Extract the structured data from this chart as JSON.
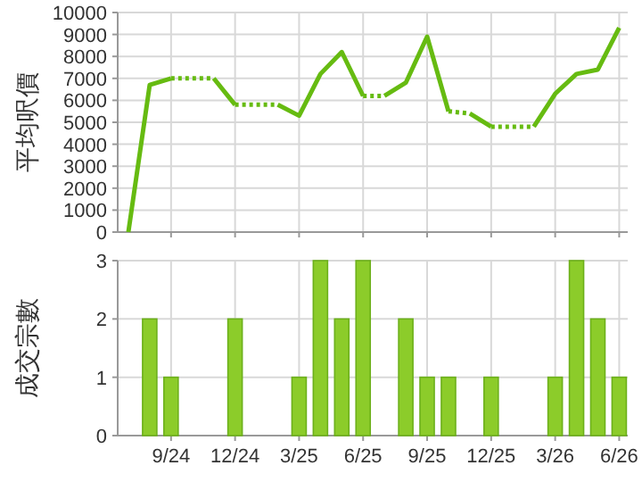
{
  "chart_data": [
    {
      "type": "line",
      "ylabel": "平均呎價",
      "xlim": [
        "2024-06-16",
        "2026-06-13"
      ],
      "ylim": [
        0,
        10000
      ],
      "yticks": [
        0,
        1000,
        2000,
        3000,
        4000,
        5000,
        6000,
        7000,
        8000,
        9000,
        10000
      ],
      "xticks": [
        {
          "value": "2024-09",
          "label": null
        },
        {
          "value": "2024-12",
          "label": null
        },
        {
          "value": "2025-03",
          "label": null
        },
        {
          "value": "2025-06",
          "label": null
        },
        {
          "value": "2025-09",
          "label": null
        },
        {
          "value": "2025-12",
          "label": null
        },
        {
          "value": "2026-03",
          "label": null
        },
        {
          "value": "2026-06",
          "label": null
        }
      ],
      "tick_labels": "y",
      "grid": true,
      "marker": "none",
      "series": [
        {
          "color": "#66bb11",
          "line_style": "solid",
          "x": [
            "2024-07",
            "2024-08",
            "2024-09"
          ],
          "values": [
            0,
            6700,
            7000
          ]
        },
        {
          "color": "#66bb11",
          "line_style": "dotted",
          "x": [
            "2024-09",
            "2024-10",
            "2024-11"
          ],
          "values": [
            7000,
            7000,
            7000
          ]
        },
        {
          "color": "#66bb11",
          "line_style": "solid",
          "x": [
            "2024-11",
            "2024-12"
          ],
          "values": [
            7000,
            5800
          ]
        },
        {
          "color": "#66bb11",
          "line_style": "dotted",
          "x": [
            "2024-12",
            "2025-01",
            "2025-02"
          ],
          "values": [
            5800,
            5800,
            5800
          ]
        },
        {
          "color": "#66bb11",
          "line_style": "solid",
          "x": [
            "2025-02",
            "2025-03",
            "2025-04",
            "2025-05",
            "2025-06"
          ],
          "values": [
            5800,
            5300,
            7200,
            8200,
            6200
          ]
        },
        {
          "color": "#66bb11",
          "line_style": "dotted",
          "x": [
            "2025-06",
            "2025-07"
          ],
          "values": [
            6200,
            6200
          ]
        },
        {
          "color": "#66bb11",
          "line_style": "solid",
          "x": [
            "2025-07",
            "2025-08",
            "2025-09",
            "2025-10"
          ],
          "values": [
            6200,
            6800,
            8900,
            5500
          ]
        },
        {
          "color": "#66bb11",
          "line_style": "dotted",
          "x": [
            "2025-10",
            "2025-11"
          ],
          "values": [
            5500,
            5400
          ]
        },
        {
          "color": "#66bb11",
          "line_style": "solid",
          "x": [
            "2025-11",
            "2025-12"
          ],
          "values": [
            5400,
            4800
          ]
        },
        {
          "color": "#66bb11",
          "line_style": "dotted",
          "x": [
            "2025-12",
            "2026-01",
            "2026-02"
          ],
          "values": [
            4800,
            4800,
            4800
          ]
        },
        {
          "color": "#66bb11",
          "line_style": "solid",
          "x": [
            "2026-02",
            "2026-03",
            "2026-04",
            "2026-05",
            "2026-06"
          ],
          "values": [
            4800,
            6300,
            7200,
            7400,
            9300
          ]
        }
      ]
    },
    {
      "type": "bar",
      "ylabel": "成交宗數",
      "xlim": [
        "2024-06-16",
        "2026-06-13"
      ],
      "ylim": [
        0,
        3
      ],
      "yticks": [
        0,
        1,
        2,
        3
      ],
      "xticks": [
        {
          "value": "2024-09",
          "label": "9/24"
        },
        {
          "value": "2024-12",
          "label": "12/24"
        },
        {
          "value": "2025-03",
          "label": "3/25"
        },
        {
          "value": "2025-06",
          "label": "6/25"
        },
        {
          "value": "2025-09",
          "label": "9/25"
        },
        {
          "value": "2025-12",
          "label": "12/25"
        },
        {
          "value": "2026-03",
          "label": "3/26"
        },
        {
          "value": "2026-06",
          "label": "6/26"
        }
      ],
      "grid": true,
      "color": "#8ccc2a",
      "x": [
        "2024-08",
        "2024-09",
        "2024-12",
        "2025-03",
        "2025-04",
        "2025-05",
        "2025-06",
        "2025-08",
        "2025-09",
        "2025-10",
        "2025-12",
        "2026-03",
        "2026-04",
        "2026-05",
        "2026-06"
      ],
      "values": [
        2,
        1,
        2,
        1,
        3,
        2,
        3,
        2,
        1,
        1,
        1,
        1,
        3,
        2,
        1
      ]
    }
  ]
}
